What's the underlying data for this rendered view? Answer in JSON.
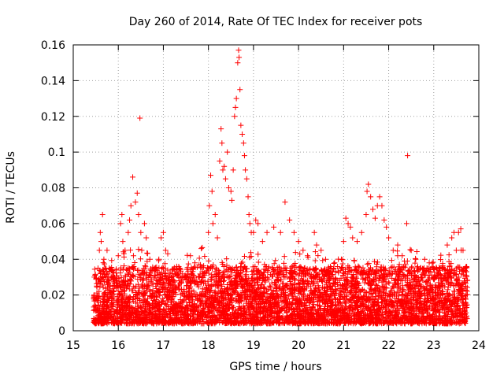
{
  "chart_data": {
    "type": "scatter",
    "title": "Day 260 of 2014, Rate Of TEC Index for receiver pots",
    "xlabel": "GPS time / hours",
    "ylabel": "ROTI / TECUs",
    "xlim": [
      15,
      24
    ],
    "ylim": [
      0,
      0.16
    ],
    "x_ticks": [
      15,
      16,
      17,
      18,
      19,
      20,
      21,
      22,
      23,
      24
    ],
    "x_tick_labels": [
      "15",
      "16",
      "17",
      "18",
      "19",
      "20",
      "21",
      "22",
      "23",
      "24"
    ],
    "y_ticks": [
      0,
      0.02,
      0.04,
      0.06,
      0.08,
      0.1,
      0.12,
      0.14,
      0.16
    ],
    "y_tick_labels": [
      "0",
      "0.02",
      "0.04",
      "0.06",
      "0.08",
      "0.1",
      "0.12",
      "0.14",
      "0.16"
    ],
    "grid": true,
    "marker": "+",
    "marker_color": "#ff0000",
    "series": [
      {
        "name": "pots",
        "points": [
          [
            15.5,
            0.012
          ],
          [
            15.52,
            0.025
          ],
          [
            15.55,
            0.035
          ],
          [
            15.58,
            0.045
          ],
          [
            15.6,
            0.055
          ],
          [
            15.62,
            0.05
          ],
          [
            15.65,
            0.065
          ],
          [
            15.68,
            0.04
          ],
          [
            15.72,
            0.03
          ],
          [
            15.75,
            0.045
          ],
          [
            15.8,
            0.035
          ],
          [
            15.9,
            0.03
          ],
          [
            15.95,
            0.028
          ],
          [
            16.0,
            0.042
          ],
          [
            16.05,
            0.06
          ],
          [
            16.08,
            0.065
          ],
          [
            16.1,
            0.05
          ],
          [
            16.15,
            0.045
          ],
          [
            16.22,
            0.055
          ],
          [
            16.25,
            0.062
          ],
          [
            16.28,
            0.07
          ],
          [
            16.32,
            0.086
          ],
          [
            16.38,
            0.072
          ],
          [
            16.42,
            0.077
          ],
          [
            16.45,
            0.065
          ],
          [
            16.48,
            0.119
          ],
          [
            16.5,
            0.055
          ],
          [
            16.52,
            0.045
          ],
          [
            16.58,
            0.06
          ],
          [
            16.62,
            0.052
          ],
          [
            16.7,
            0.04
          ],
          [
            16.8,
            0.035
          ],
          [
            16.9,
            0.04
          ],
          [
            16.95,
            0.052
          ],
          [
            17.0,
            0.055
          ],
          [
            17.05,
            0.045
          ],
          [
            17.1,
            0.03
          ],
          [
            17.2,
            0.032
          ],
          [
            17.35,
            0.028
          ],
          [
            17.5,
            0.03
          ],
          [
            17.6,
            0.042
          ],
          [
            17.7,
            0.038
          ],
          [
            17.8,
            0.03
          ],
          [
            17.9,
            0.032
          ],
          [
            18.0,
            0.055
          ],
          [
            18.02,
            0.07
          ],
          [
            18.05,
            0.087
          ],
          [
            18.08,
            0.078
          ],
          [
            18.1,
            0.06
          ],
          [
            18.15,
            0.065
          ],
          [
            18.2,
            0.052
          ],
          [
            18.25,
            0.095
          ],
          [
            18.28,
            0.113
          ],
          [
            18.3,
            0.105
          ],
          [
            18.32,
            0.09
          ],
          [
            18.35,
            0.092
          ],
          [
            18.38,
            0.085
          ],
          [
            18.42,
            0.1
          ],
          [
            18.45,
            0.08
          ],
          [
            18.5,
            0.078
          ],
          [
            18.52,
            0.073
          ],
          [
            18.55,
            0.09
          ],
          [
            18.58,
            0.12
          ],
          [
            18.6,
            0.125
          ],
          [
            18.62,
            0.13
          ],
          [
            18.65,
            0.15
          ],
          [
            18.67,
            0.157
          ],
          [
            18.68,
            0.153
          ],
          [
            18.7,
            0.135
          ],
          [
            18.72,
            0.115
          ],
          [
            18.75,
            0.11
          ],
          [
            18.78,
            0.105
          ],
          [
            18.8,
            0.098
          ],
          [
            18.82,
            0.09
          ],
          [
            18.85,
            0.085
          ],
          [
            18.88,
            0.075
          ],
          [
            18.9,
            0.065
          ],
          [
            18.92,
            0.06
          ],
          [
            18.95,
            0.055
          ],
          [
            19.0,
            0.055
          ],
          [
            19.05,
            0.062
          ],
          [
            19.1,
            0.06
          ],
          [
            19.2,
            0.05
          ],
          [
            19.3,
            0.055
          ],
          [
            19.45,
            0.058
          ],
          [
            19.6,
            0.055
          ],
          [
            19.7,
            0.072
          ],
          [
            19.8,
            0.062
          ],
          [
            19.9,
            0.055
          ],
          [
            20.0,
            0.05
          ],
          [
            20.1,
            0.045
          ],
          [
            20.2,
            0.042
          ],
          [
            20.35,
            0.055
          ],
          [
            20.4,
            0.048
          ],
          [
            20.5,
            0.045
          ],
          [
            20.6,
            0.04
          ],
          [
            20.8,
            0.038
          ],
          [
            20.95,
            0.04
          ],
          [
            21.0,
            0.05
          ],
          [
            21.05,
            0.063
          ],
          [
            21.1,
            0.06
          ],
          [
            21.15,
            0.058
          ],
          [
            21.2,
            0.052
          ],
          [
            21.3,
            0.05
          ],
          [
            21.4,
            0.055
          ],
          [
            21.5,
            0.065
          ],
          [
            21.52,
            0.078
          ],
          [
            21.55,
            0.082
          ],
          [
            21.6,
            0.075
          ],
          [
            21.65,
            0.068
          ],
          [
            21.7,
            0.063
          ],
          [
            21.75,
            0.07
          ],
          [
            21.8,
            0.075
          ],
          [
            21.85,
            0.07
          ],
          [
            21.9,
            0.062
          ],
          [
            21.95,
            0.058
          ],
          [
            22.0,
            0.052
          ],
          [
            22.1,
            0.045
          ],
          [
            22.2,
            0.048
          ],
          [
            22.3,
            0.042
          ],
          [
            22.4,
            0.06
          ],
          [
            22.42,
            0.098
          ],
          [
            22.5,
            0.045
          ],
          [
            22.6,
            0.04
          ],
          [
            22.7,
            0.035
          ],
          [
            22.8,
            0.04
          ],
          [
            22.9,
            0.038
          ],
          [
            23.0,
            0.03
          ],
          [
            23.1,
            0.032
          ],
          [
            23.2,
            0.035
          ],
          [
            23.3,
            0.048
          ],
          [
            23.4,
            0.052
          ],
          [
            23.45,
            0.055
          ],
          [
            23.5,
            0.045
          ],
          [
            23.55,
            0.055
          ],
          [
            23.6,
            0.057
          ],
          [
            23.65,
            0.045
          ],
          [
            23.7,
            0.035
          ],
          [
            23.72,
            0.02
          ],
          [
            15.6,
            0.01
          ],
          [
            15.9,
            0.008
          ],
          [
            16.3,
            0.012
          ],
          [
            16.8,
            0.006
          ],
          [
            17.3,
            0.01
          ],
          [
            17.8,
            0.005
          ],
          [
            18.3,
            0.01
          ],
          [
            18.8,
            0.009
          ],
          [
            19.3,
            0.011
          ],
          [
            19.8,
            0.012
          ],
          [
            20.3,
            0.01
          ],
          [
            20.8,
            0.008
          ],
          [
            21.3,
            0.012
          ],
          [
            21.8,
            0.01
          ],
          [
            22.3,
            0.007
          ],
          [
            22.8,
            0.011
          ],
          [
            23.3,
            0.009
          ],
          [
            23.7,
            0.006
          ],
          [
            15.7,
            0.02
          ],
          [
            16.2,
            0.025
          ],
          [
            16.7,
            0.022
          ],
          [
            17.2,
            0.018
          ],
          [
            17.7,
            0.02
          ],
          [
            18.2,
            0.025
          ],
          [
            18.7,
            0.03
          ],
          [
            19.2,
            0.028
          ],
          [
            19.7,
            0.03
          ],
          [
            20.2,
            0.032
          ],
          [
            20.7,
            0.025
          ],
          [
            21.2,
            0.028
          ],
          [
            21.7,
            0.03
          ],
          [
            22.2,
            0.025
          ],
          [
            22.7,
            0.022
          ],
          [
            23.2,
            0.02
          ],
          [
            23.6,
            0.018
          ]
        ]
      }
    ]
  }
}
